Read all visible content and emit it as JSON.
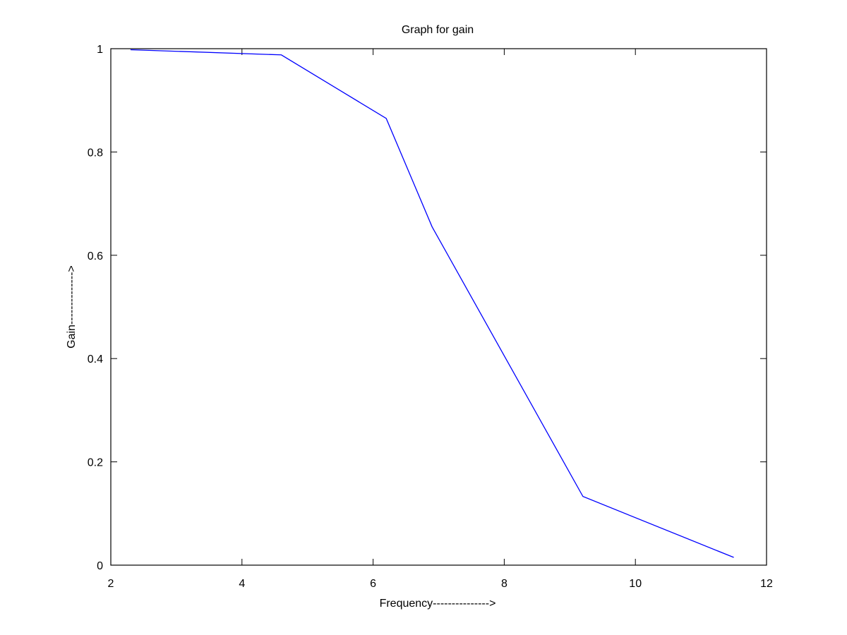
{
  "chart_data": {
    "type": "line",
    "title": "Graph for gain",
    "xlabel": "Frequency--------------->",
    "ylabel": "Gain-------------->",
    "xlim": [
      2,
      12
    ],
    "ylim": [
      0,
      1
    ],
    "xticks": [
      2,
      4,
      6,
      8,
      10,
      12
    ],
    "yticks": [
      0,
      0.2,
      0.4,
      0.6,
      0.8,
      1
    ],
    "xtick_labels": [
      "2",
      "4",
      "6",
      "8",
      "10",
      "12"
    ],
    "ytick_labels": [
      "0",
      "0.2",
      "0.4",
      "0.6",
      "0.8",
      "1"
    ],
    "grid": false,
    "legend": "none",
    "series": [
      {
        "color": "#0000ff",
        "x": [
          2.3,
          4.6,
          6.2,
          6.9,
          9.2,
          11.5
        ],
        "y": [
          0.998,
          0.988,
          0.865,
          0.655,
          0.133,
          0.015
        ]
      }
    ]
  }
}
